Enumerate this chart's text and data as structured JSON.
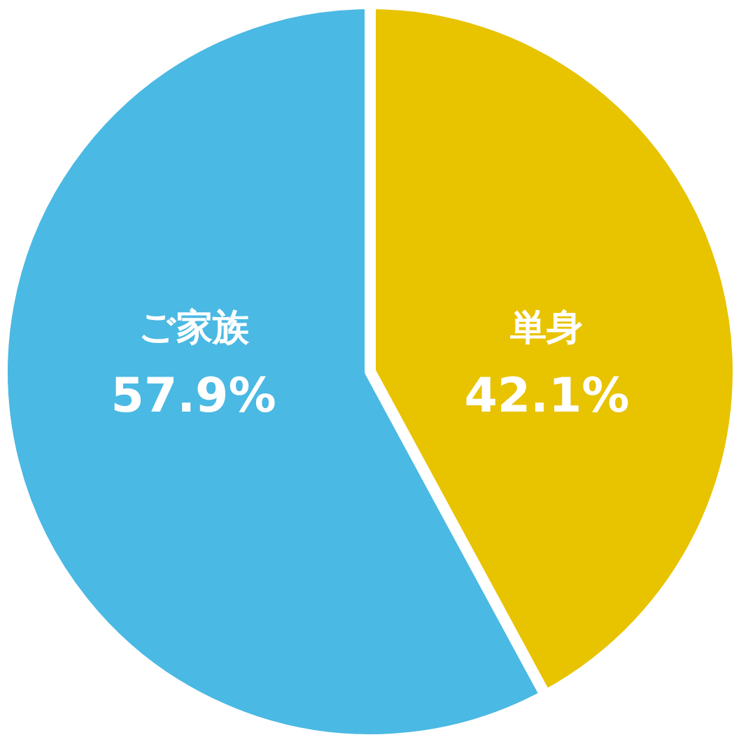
{
  "chart_data": {
    "type": "pie",
    "categories": [
      "単身",
      "ご家族"
    ],
    "values": [
      42.1,
      57.9
    ],
    "colors": [
      "#e8c300",
      "#4ab9e3"
    ],
    "value_labels": [
      "42.1%",
      "57.9%"
    ]
  }
}
